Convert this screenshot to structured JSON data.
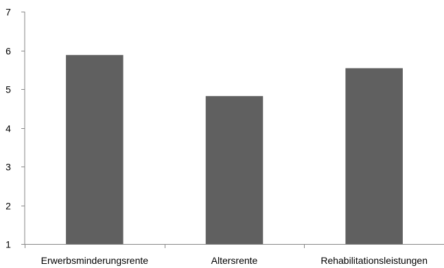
{
  "chart_data": {
    "type": "bar",
    "categories": [
      "Erwerbsminderungsrente",
      "Altersrente",
      "Rehabilitationsleistungen"
    ],
    "values": [
      5.88,
      4.82,
      5.54
    ],
    "title": "",
    "xlabel": "",
    "ylabel": "",
    "ylim": [
      1,
      7
    ],
    "yticks": [
      1,
      2,
      3,
      4,
      5,
      6,
      7
    ],
    "grid": false,
    "legend": "none",
    "colors": {
      "bar": "#606060",
      "axis": "#868686",
      "text": "#000000"
    }
  }
}
